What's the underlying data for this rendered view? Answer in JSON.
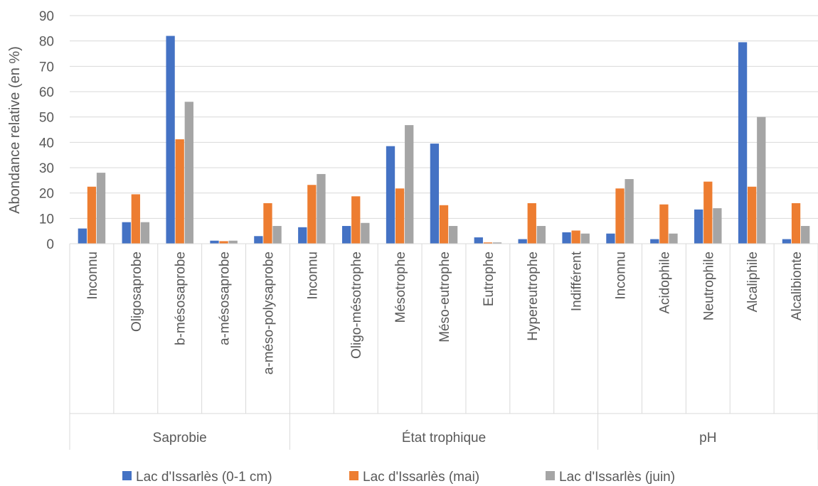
{
  "chart_data": {
    "type": "bar",
    "ylabel": "Abondance relative (en %)",
    "ylim": [
      0,
      90
    ],
    "yticks": [
      "0",
      "10",
      "20",
      "30",
      "40",
      "50",
      "60",
      "70",
      "80",
      "90"
    ],
    "grid": true,
    "legend_position": "bottom",
    "groups": [
      {
        "name": "Saprobie",
        "categories": [
          "Inconnu",
          "Oligosaprobe",
          "b-mésosaprobe",
          "a-mésosaprobe",
          "a-méso-polysaprobe"
        ]
      },
      {
        "name": "État trophique",
        "categories": [
          "Inconnu",
          "Oligo-mésotrophe",
          "Mésotrophe",
          "Méso-eutrophe",
          "Eutrophe",
          "Hypereutrophe",
          "Indifférent"
        ]
      },
      {
        "name": "pH",
        "categories": [
          "Inconnu",
          "Acidophile",
          "Neutrophile",
          "Alcaliphile",
          "Alcalibionte"
        ]
      }
    ],
    "series": [
      {
        "name": "Lac d'Issarlès (0-1 cm)",
        "color": "#4472C4",
        "values": [
          6,
          8.5,
          82,
          1.2,
          3,
          6.5,
          7,
          38.5,
          39.5,
          2.5,
          1.8,
          4.5,
          4,
          1.8,
          13.5,
          79.5,
          1.8
        ]
      },
      {
        "name": "Lac d'Issarlès (mai)",
        "color": "#ED7D31",
        "values": [
          22.5,
          19.5,
          41.2,
          1,
          16,
          23.2,
          18.7,
          21.8,
          15.2,
          0.5,
          16,
          5.2,
          21.8,
          15.5,
          24.5,
          22.5,
          16
        ]
      },
      {
        "name": "Lac d'Issarlès (juin)",
        "color": "#A5A5A5",
        "values": [
          28,
          8.5,
          56,
          1.2,
          7,
          27.5,
          8.2,
          46.8,
          7,
          0.5,
          7,
          4,
          25.5,
          4,
          14,
          50,
          7
        ]
      }
    ]
  }
}
